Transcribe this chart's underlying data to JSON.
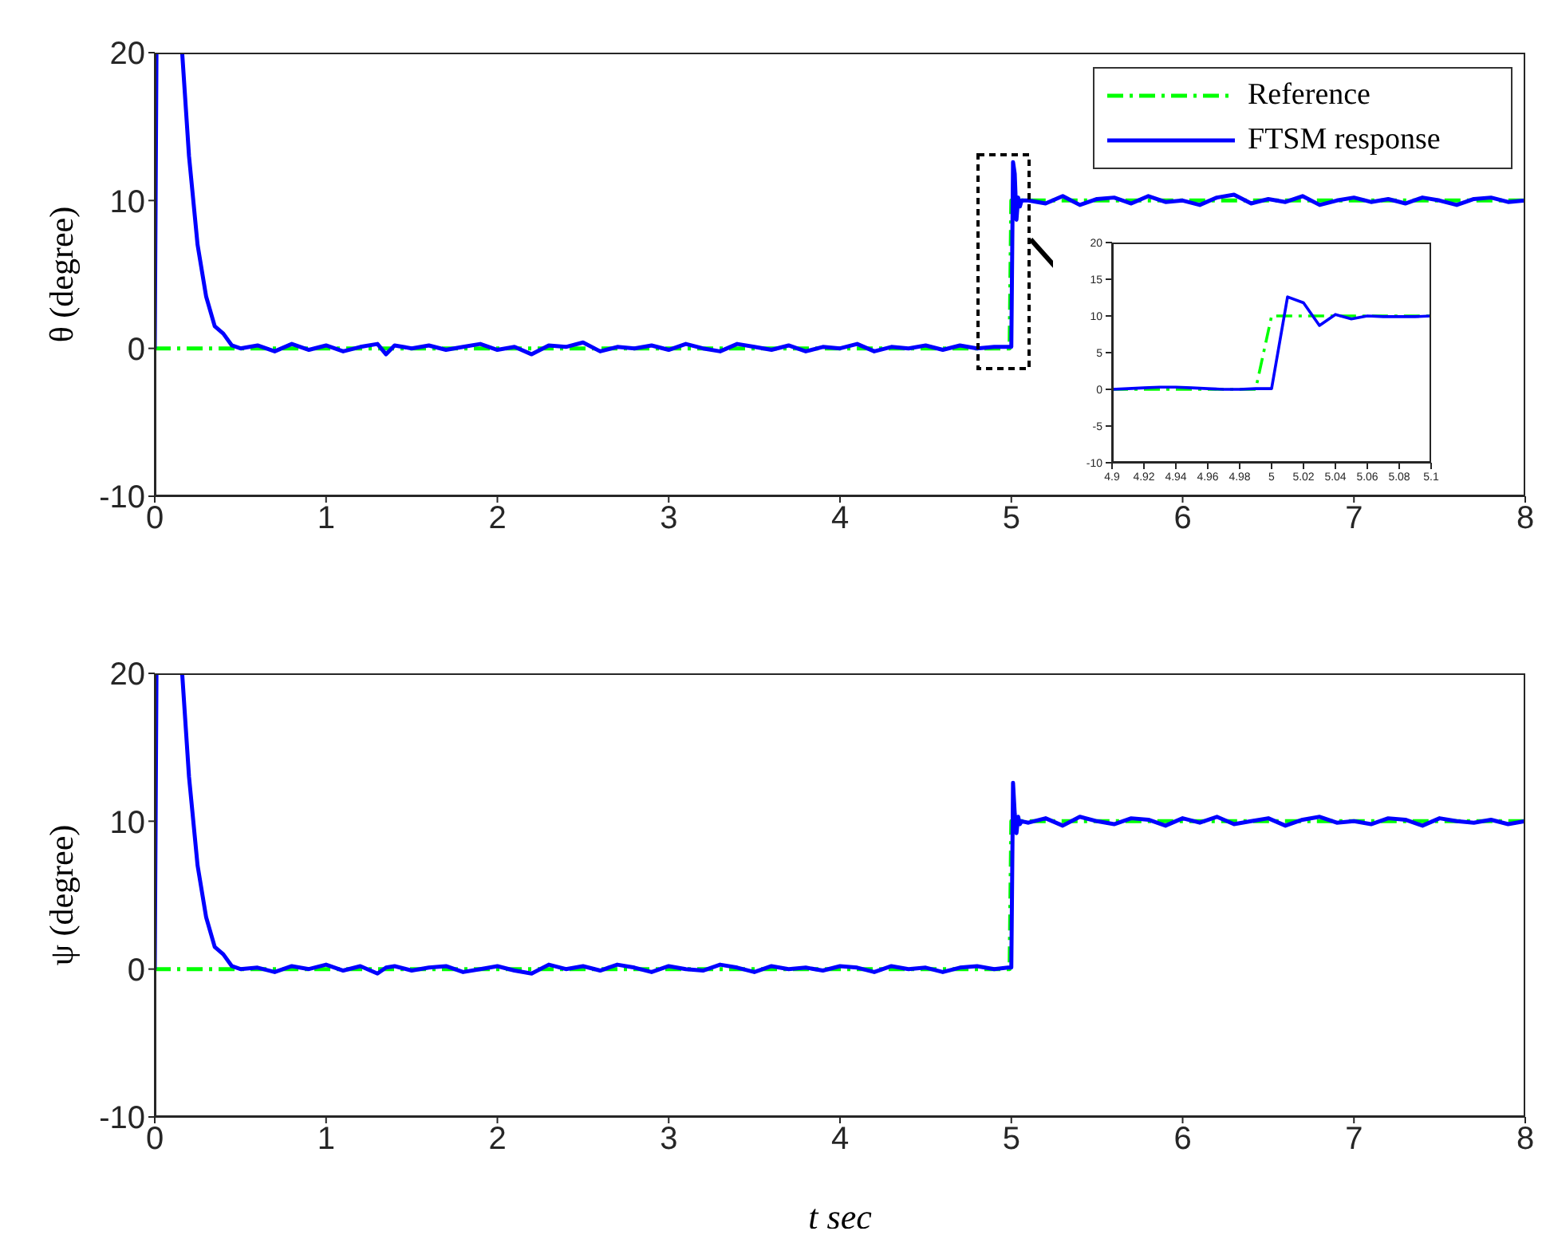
{
  "chart_data": [
    {
      "type": "line",
      "ylabel": "θ (degree)",
      "xlim": [
        0,
        8
      ],
      "ylim": [
        -10,
        20
      ],
      "xticks": [
        0,
        1,
        2,
        3,
        4,
        5,
        6,
        7,
        8
      ],
      "yticks": [
        -10,
        0,
        10,
        20
      ],
      "legend": "top right",
      "grid": false,
      "marker": "none",
      "series": [
        {
          "name": "Reference",
          "color": "#00ff00",
          "line_style": "dashed",
          "x": [
            0,
            4.99,
            5.0,
            8
          ],
          "values": [
            0,
            0,
            10,
            10
          ]
        },
        {
          "name": "FTSM response",
          "color": "#0000ff",
          "line_style": "solid",
          "x": [
            0,
            0.01,
            0.05,
            0.16,
            0.2,
            0.25,
            0.3,
            0.35,
            0.4,
            0.45,
            0.5,
            0.6,
            0.7,
            0.8,
            0.9,
            1.0,
            1.1,
            1.2,
            1.3,
            1.35,
            1.4,
            1.5,
            1.6,
            1.7,
            1.8,
            1.9,
            2.0,
            2.1,
            2.2,
            2.3,
            2.4,
            2.5,
            2.6,
            2.7,
            2.8,
            2.9,
            3.0,
            3.1,
            3.2,
            3.3,
            3.4,
            3.5,
            3.6,
            3.7,
            3.8,
            3.9,
            4.0,
            4.1,
            4.2,
            4.3,
            4.4,
            4.5,
            4.6,
            4.7,
            4.8,
            4.9,
            4.98,
            5.0,
            5.01,
            5.02,
            5.03,
            5.04,
            5.05,
            5.06,
            5.1,
            5.2,
            5.3,
            5.4,
            5.5,
            5.6,
            5.7,
            5.8,
            5.9,
            6.0,
            6.1,
            6.2,
            6.3,
            6.4,
            6.5,
            6.6,
            6.7,
            6.8,
            6.9,
            7.0,
            7.1,
            7.2,
            7.3,
            7.4,
            7.5,
            7.6,
            7.7,
            7.8,
            7.9,
            8.0
          ],
          "values": [
            0,
            20,
            null,
            20,
            13,
            7,
            3.5,
            1.5,
            1,
            0.2,
            0,
            0.2,
            -0.2,
            0.3,
            -0.1,
            0.2,
            -0.2,
            0.1,
            0.3,
            -0.4,
            0.2,
            0,
            0.2,
            -0.1,
            0.1,
            0.3,
            -0.1,
            0.1,
            -0.4,
            0.2,
            0.1,
            0.4,
            -0.2,
            0.1,
            0,
            0.2,
            -0.1,
            0.3,
            0,
            -0.2,
            0.3,
            0.1,
            -0.1,
            0.2,
            -0.2,
            0.1,
            0,
            0.3,
            -0.2,
            0.1,
            0,
            0.2,
            -0.1,
            0.2,
            0,
            0.1,
            0.1,
            0.1,
            12.6,
            11.8,
            8.7,
            10.2,
            9.6,
            10,
            10,
            9.8,
            10.3,
            9.7,
            10.1,
            10.2,
            9.8,
            10.3,
            9.9,
            10,
            9.7,
            10.2,
            10.4,
            9.8,
            10.1,
            9.9,
            10.3,
            9.7,
            10,
            10.2,
            9.9,
            10.1,
            9.8,
            10.2,
            10,
            9.7,
            10.1,
            10.2,
            9.9,
            10
          ]
        }
      ]
    },
    {
      "type": "line",
      "xlim": [
        4.9,
        5.1
      ],
      "ylim": [
        -10,
        20
      ],
      "xticks": [
        4.9,
        4.92,
        4.94,
        4.96,
        4.98,
        5,
        5.02,
        5.04,
        5.06,
        5.08,
        5.1
      ],
      "yticks": [
        -10,
        -5,
        0,
        5,
        10,
        15,
        20
      ],
      "grid": false,
      "legend": false,
      "marker": "none",
      "series": [
        {
          "color": "#00ff00",
          "line_style": "dashed",
          "x": [
            4.9,
            4.99,
            5.0,
            5.1
          ],
          "values": [
            0,
            0,
            10,
            10
          ]
        },
        {
          "color": "#0000ff",
          "line_style": "solid",
          "x": [
            4.9,
            4.91,
            4.92,
            4.93,
            4.94,
            4.95,
            4.96,
            4.97,
            4.98,
            4.99,
            5.0,
            5.01,
            5.02,
            5.03,
            5.04,
            5.05,
            5.06,
            5.07,
            5.08,
            5.09,
            5.1
          ],
          "values": [
            0,
            0.1,
            0.2,
            0.3,
            0.3,
            0.2,
            0.1,
            0,
            0,
            0.1,
            0.1,
            12.6,
            11.8,
            8.7,
            10.2,
            9.6,
            10,
            9.9,
            9.9,
            9.9,
            10
          ]
        }
      ]
    },
    {
      "type": "line",
      "xlabel": "t sec",
      "ylabel": "ψ (degree)",
      "xlim": [
        0,
        8
      ],
      "ylim": [
        -10,
        20
      ],
      "xticks": [
        0,
        1,
        2,
        3,
        4,
        5,
        6,
        7,
        8
      ],
      "yticks": [
        -10,
        0,
        10,
        20
      ],
      "legend": false,
      "grid": false,
      "marker": "none",
      "series": [
        {
          "color": "#00ff00",
          "line_style": "dashed",
          "x": [
            0,
            4.99,
            5.0,
            8
          ],
          "values": [
            0,
            0,
            10,
            10
          ]
        },
        {
          "color": "#0000ff",
          "line_style": "solid",
          "x": [
            0,
            0.01,
            0.05,
            0.16,
            0.2,
            0.25,
            0.3,
            0.35,
            0.4,
            0.45,
            0.5,
            0.6,
            0.7,
            0.8,
            0.9,
            1.0,
            1.1,
            1.2,
            1.3,
            1.35,
            1.4,
            1.5,
            1.6,
            1.7,
            1.8,
            1.9,
            2.0,
            2.1,
            2.2,
            2.3,
            2.4,
            2.5,
            2.6,
            2.7,
            2.8,
            2.9,
            3.0,
            3.1,
            3.2,
            3.3,
            3.4,
            3.5,
            3.6,
            3.7,
            3.8,
            3.9,
            4.0,
            4.1,
            4.2,
            4.3,
            4.4,
            4.5,
            4.6,
            4.7,
            4.8,
            4.9,
            4.98,
            5.0,
            5.01,
            5.02,
            5.03,
            5.04,
            5.05,
            5.06,
            5.1,
            5.2,
            5.3,
            5.4,
            5.5,
            5.6,
            5.7,
            5.8,
            5.9,
            6.0,
            6.1,
            6.2,
            6.3,
            6.4,
            6.5,
            6.6,
            6.7,
            6.8,
            6.9,
            7.0,
            7.1,
            7.2,
            7.3,
            7.4,
            7.5,
            7.6,
            7.7,
            7.8,
            7.9,
            8.0
          ],
          "values": [
            0,
            20,
            null,
            20,
            13,
            7,
            3.5,
            1.5,
            1,
            0.2,
            0,
            0.1,
            -0.2,
            0.2,
            0,
            0.3,
            -0.1,
            0.2,
            -0.3,
            0.1,
            0.2,
            -0.1,
            0.1,
            0.2,
            -0.2,
            0,
            0.2,
            -0.1,
            -0.3,
            0.3,
            0,
            0.2,
            -0.1,
            0.3,
            0.1,
            -0.2,
            0.2,
            0,
            -0.1,
            0.3,
            0.1,
            -0.2,
            0.2,
            0,
            0.1,
            -0.1,
            0.2,
            0.1,
            -0.2,
            0.2,
            0,
            0.1,
            -0.2,
            0.1,
            0.2,
            0,
            0.1,
            0.1,
            12.6,
            10.5,
            9.2,
            10.3,
            9.8,
            10,
            9.9,
            10.2,
            9.7,
            10.3,
            10,
            9.8,
            10.2,
            10.1,
            9.7,
            10.2,
            9.9,
            10.3,
            9.8,
            10,
            10.2,
            9.7,
            10.1,
            10.3,
            9.9,
            10,
            9.8,
            10.2,
            10.1,
            9.7,
            10.2,
            10,
            9.9,
            10.1,
            9.8,
            10
          ]
        }
      ]
    }
  ]
}
